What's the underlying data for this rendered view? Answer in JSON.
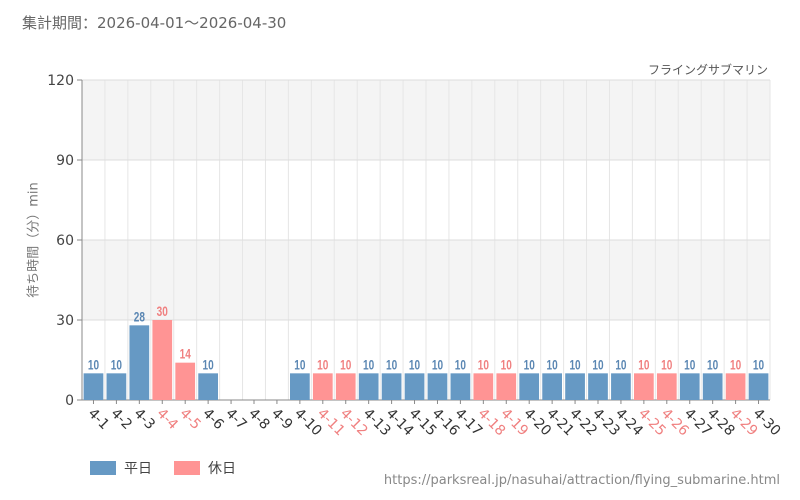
{
  "header": {
    "period_label": "集計期間：2026-04-01～2026-04-30",
    "attraction_name": "フライングサブマリン"
  },
  "footer": {
    "source_url": "https://parksreal.jp/nasuhai/attraction/flying_submarine.html"
  },
  "chart_data": {
    "type": "bar",
    "ylabel": "待ち時間（分）min",
    "ylim": [
      0,
      120
    ],
    "yticks": [
      0,
      30,
      60,
      90,
      120
    ],
    "grid": true,
    "legend_position": "bottom-left",
    "categories": [
      "4-1",
      "4-2",
      "4-3",
      "4-4",
      "4-5",
      "4-6",
      "4-7",
      "4-8",
      "4-9",
      "4-10",
      "4-11",
      "4-12",
      "4-13",
      "4-14",
      "4-15",
      "4-16",
      "4-17",
      "4-18",
      "4-19",
      "4-20",
      "4-21",
      "4-22",
      "4-23",
      "4-24",
      "4-25",
      "4-26",
      "4-27",
      "4-28",
      "4-29",
      "4-30"
    ],
    "values": [
      10,
      10,
      28,
      30,
      14,
      10,
      null,
      null,
      null,
      10,
      10,
      10,
      10,
      10,
      10,
      10,
      10,
      10,
      10,
      10,
      10,
      10,
      10,
      10,
      10,
      10,
      10,
      10,
      10,
      10
    ],
    "day_type": [
      "weekday",
      "weekday",
      "weekday",
      "holiday",
      "holiday",
      "weekday",
      "weekday",
      "weekday",
      "weekday",
      "weekday",
      "holiday",
      "holiday",
      "weekday",
      "weekday",
      "weekday",
      "weekday",
      "weekday",
      "holiday",
      "holiday",
      "weekday",
      "weekday",
      "weekday",
      "weekday",
      "weekday",
      "holiday",
      "holiday",
      "weekday",
      "weekday",
      "holiday",
      "weekday"
    ],
    "legend": [
      {
        "key": "weekday",
        "label": "平日",
        "color": "#6699c4"
      },
      {
        "key": "holiday",
        "label": "休日",
        "color": "#ff9494"
      }
    ],
    "label_colors": {
      "weekday": "#5b87b3",
      "holiday": "#f08080"
    },
    "tick_label_colors": {
      "weekday": "#333333",
      "holiday": "#f08080"
    }
  }
}
